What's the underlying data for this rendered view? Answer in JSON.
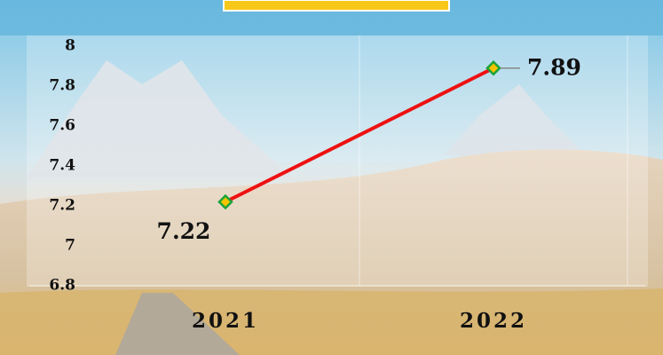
{
  "chart_data": {
    "type": "line",
    "categories": [
      "2021",
      "2022"
    ],
    "series": [
      {
        "color": "#ee1111",
        "values": [
          7.22,
          7.89
        ]
      }
    ],
    "marker_fill": "#f5c400",
    "marker_stroke": "#1aa33a",
    "ylim": [
      6.8,
      8
    ],
    "yticks": [
      6.8,
      7,
      7.2,
      7.4,
      7.6,
      7.8,
      8
    ],
    "grid": false
  }
}
